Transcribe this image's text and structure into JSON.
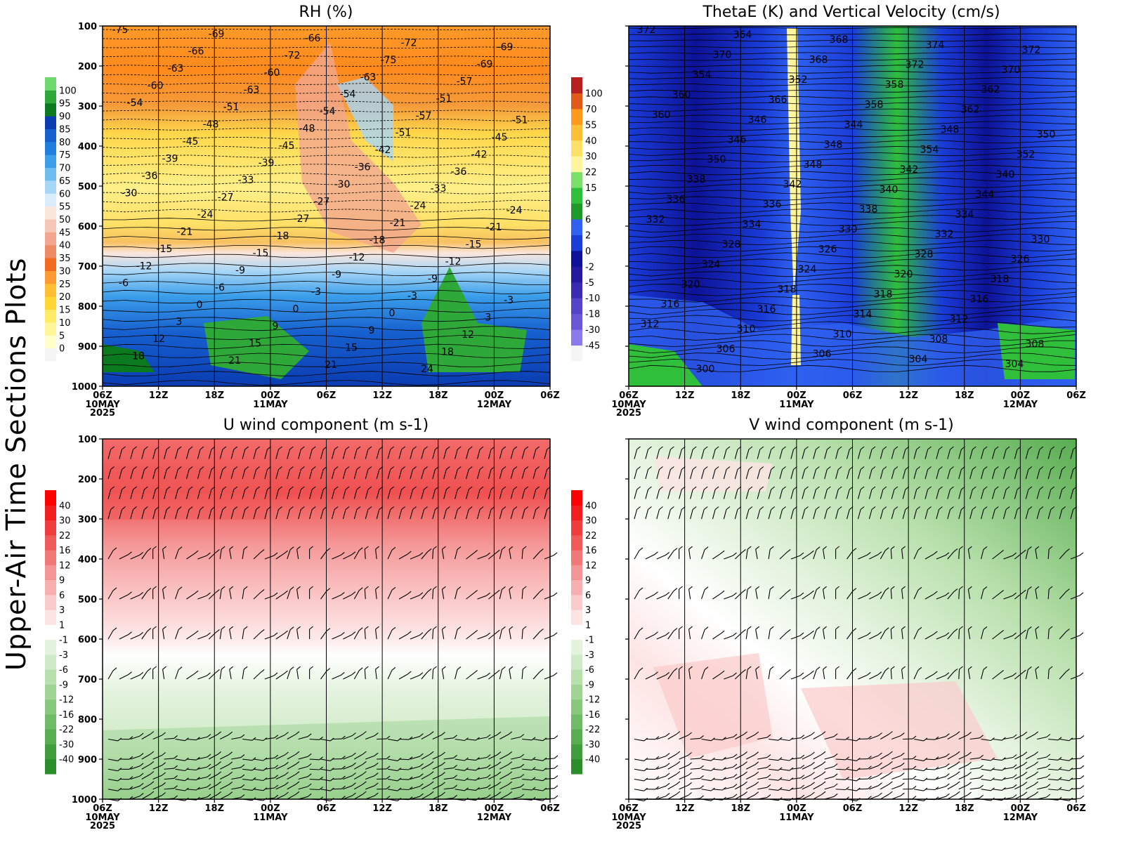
{
  "figure_title": "Upper-Air Time Sections Plots",
  "chart_data": [
    {
      "id": "rh",
      "type": "heatmap",
      "title": "RH (%)",
      "ylim": [
        1000,
        100
      ],
      "yticks": [
        "100",
        "200",
        "300",
        "400",
        "500",
        "600",
        "700",
        "800",
        "900",
        "1000"
      ],
      "xticks": [
        "06Z",
        "12Z",
        "18Z",
        "00Z",
        "06Z",
        "12Z",
        "18Z",
        "00Z",
        "06Z"
      ],
      "xdates": [
        "10MAY",
        "",
        "",
        "11MAY",
        "",
        "",
        "",
        "12MAY",
        ""
      ],
      "year": "2025",
      "colorbar_levels": [
        "0",
        "5",
        "10",
        "15",
        "20",
        "25",
        "30",
        "35",
        "40",
        "45",
        "50",
        "55",
        "60",
        "65",
        "70",
        "75",
        "80",
        "85",
        "90",
        "95",
        "100"
      ],
      "colorbar_colors": [
        "#f5f5f5",
        "#ffffcc",
        "#fff599",
        "#ffeb66",
        "#ffd633",
        "#ffbf33",
        "#ff9933",
        "#f26b1f",
        "#ee8a64",
        "#f2a68f",
        "#f6c6b6",
        "#fbe6dc",
        "#d8ecfa",
        "#a8d6f6",
        "#6fbcf0",
        "#3a9eea",
        "#1f7fe0",
        "#1660cf",
        "#0b3cb2",
        "#0b7a1e",
        "#2fa83a",
        "#6ed96c"
      ],
      "contour_labels": [
        "-75",
        "-69",
        "-66",
        "-72",
        "-69",
        "-66",
        "-72",
        "-75",
        "-69",
        "-63",
        "-60",
        "-63",
        "-57",
        "-60",
        "-63",
        "-54",
        "-51",
        "-54",
        "-51",
        "-54",
        "-57",
        "-51",
        "-48",
        "-48",
        "-51",
        "-45",
        "-45",
        "-45",
        "-42",
        "-42",
        "-39",
        "-39",
        "-36",
        "-36",
        "-36",
        "-33",
        "-30",
        "-33",
        "-30",
        "-27",
        "-27",
        "-24",
        "-24",
        "-24",
        "-27",
        "-21",
        "-21",
        "-21",
        "-18",
        "-18",
        "-15",
        "-15",
        "-15",
        "-12",
        "-12",
        "-12",
        "-9",
        "-9",
        "-9",
        "-6",
        "-6",
        "-3",
        "-3",
        "-3",
        "0",
        "0",
        "0",
        "3",
        "3",
        "9",
        "9",
        "12",
        "12",
        "15",
        "15",
        "18",
        "18",
        "21",
        "21",
        "24"
      ],
      "contour_note": "temperature contours (solid)"
    },
    {
      "id": "thetae",
      "type": "heatmap",
      "title": "ThetaE (K) and Vertical Velocity (cm/s)",
      "ylim": [
        1000,
        100
      ],
      "xticks": [
        "06Z",
        "12Z",
        "18Z",
        "00Z",
        "06Z",
        "12Z",
        "18Z",
        "00Z",
        "06Z"
      ],
      "xdates": [
        "10MAY",
        "",
        "",
        "11MAY",
        "",
        "",
        "",
        "12MAY",
        ""
      ],
      "year": "2025",
      "colorbar_levels": [
        "-45",
        "-30",
        "-18",
        "-10",
        "-5",
        "-2",
        "0",
        "2",
        "6",
        "9",
        "15",
        "22",
        "30",
        "40",
        "55",
        "70",
        "100"
      ],
      "colorbar_colors": [
        "#f5f5f5",
        "#8b7bea",
        "#6a57d8",
        "#5544c8",
        "#3a2cb0",
        "#231aa0",
        "#0d1296",
        "#1a3cd8",
        "#2f62f0",
        "#1f9a2a",
        "#2fbf3a",
        "#7ae067",
        "#fff59e",
        "#ffe066",
        "#ffbf33",
        "#ff9a1a",
        "#e25a1a",
        "#b82020"
      ],
      "contour_labels": [
        "372",
        "364",
        "368",
        "374",
        "372",
        "370",
        "368",
        "372",
        "370",
        "354",
        "352",
        "358",
        "362",
        "360",
        "366",
        "358",
        "362",
        "360",
        "346",
        "344",
        "348",
        "350",
        "346",
        "348",
        "354",
        "352",
        "350",
        "348",
        "342",
        "340",
        "338",
        "342",
        "340",
        "344",
        "336",
        "336",
        "338",
        "334",
        "332",
        "334",
        "330",
        "332",
        "330",
        "328",
        "326",
        "328",
        "326",
        "324",
        "324",
        "320",
        "318",
        "320",
        "318",
        "318",
        "316",
        "316",
        "316",
        "314",
        "312",
        "312",
        "310",
        "310",
        "308",
        "308",
        "306",
        "306",
        "304",
        "304",
        "300"
      ]
    },
    {
      "id": "uwind",
      "type": "heatmap",
      "title": "U wind component (m s-1)",
      "ylim": [
        1000,
        100
      ],
      "yticks": [
        "100",
        "200",
        "300",
        "400",
        "500",
        "600",
        "700",
        "800",
        "900",
        "1000"
      ],
      "xticks": [
        "06Z",
        "12Z",
        "18Z",
        "00Z",
        "06Z",
        "12Z",
        "18Z",
        "00Z",
        "06Z"
      ],
      "xdates": [
        "10MAY",
        "",
        "",
        "11MAY",
        "",
        "",
        "",
        "12MAY",
        ""
      ],
      "year": "2025",
      "colorbar_levels": [
        "-40",
        "-30",
        "-22",
        "-16",
        "-12",
        "-9",
        "-6",
        "-3",
        "-1",
        "1",
        "3",
        "6",
        "9",
        "12",
        "16",
        "22",
        "30",
        "40"
      ],
      "colorbar_colors": [
        "#2a8f2a",
        "#409f3c",
        "#58ad50",
        "#70bb66",
        "#88c87d",
        "#a0d494",
        "#b8e0ac",
        "#cfeac6",
        "#e4f3de",
        "#ffffff",
        "#fde4e4",
        "#fbcaca",
        "#f8afaf",
        "#f59494",
        "#f27878",
        "#f05a5a",
        "#f03c3c",
        "#f21d1d",
        "#ff0000"
      ],
      "wind_barbs": true
    },
    {
      "id": "vwind",
      "type": "heatmap",
      "title": "V wind component (m s-1)",
      "ylim": [
        1000,
        100
      ],
      "xticks": [
        "06Z",
        "12Z",
        "18Z",
        "00Z",
        "06Z",
        "12Z",
        "18Z",
        "00Z",
        "06Z"
      ],
      "xdates": [
        "10MAY",
        "",
        "",
        "11MAY",
        "",
        "",
        "",
        "12MAY",
        ""
      ],
      "year": "2025",
      "colorbar_levels": [
        "-40",
        "-30",
        "-22",
        "-16",
        "-12",
        "-9",
        "-6",
        "-3",
        "-1",
        "1",
        "3",
        "6",
        "9",
        "12",
        "16",
        "22",
        "30",
        "40"
      ],
      "colorbar_colors": [
        "#2a8f2a",
        "#409f3c",
        "#58ad50",
        "#70bb66",
        "#88c87d",
        "#a0d494",
        "#b8e0ac",
        "#cfeac6",
        "#e4f3de",
        "#ffffff",
        "#fde4e4",
        "#fbcaca",
        "#f8afaf",
        "#f59494",
        "#f27878",
        "#f05a5a",
        "#f03c3c",
        "#f21d1d",
        "#ff0000"
      ],
      "wind_barbs": true
    }
  ]
}
